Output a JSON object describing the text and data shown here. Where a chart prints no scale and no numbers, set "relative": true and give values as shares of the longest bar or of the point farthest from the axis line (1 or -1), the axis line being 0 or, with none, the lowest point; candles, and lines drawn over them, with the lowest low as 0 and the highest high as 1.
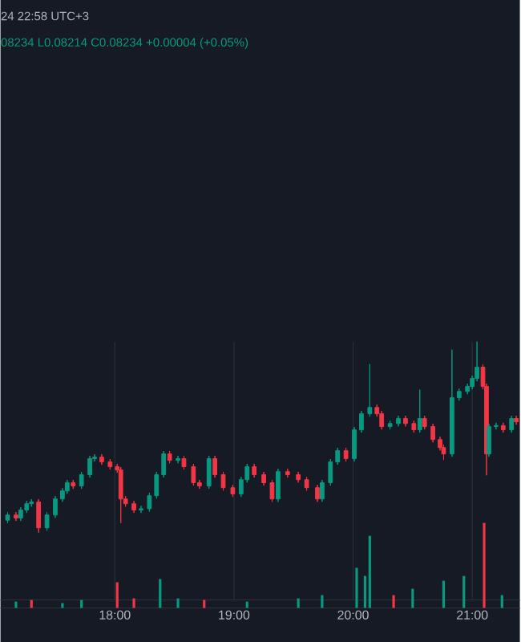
{
  "chart_data": [
    {
      "type": "candlestick",
      "relative": true,
      "xlim": [
        17.04,
        21.4
      ],
      "grid": "x",
      "xticks": [
        {
          "value": 18,
          "label": "18:00"
        },
        {
          "value": 19,
          "label": "19:00"
        },
        {
          "value": 20,
          "label": "20:00"
        },
        {
          "value": 21,
          "label": "21:00"
        }
      ],
      "annotations": [
        "24 22:58 UTC+3",
        "08234  L0.08214  C0.08234  +0.00004 (+0.05%)"
      ],
      "x": [
        17.1,
        17.17,
        17.21,
        17.26,
        17.3,
        17.36,
        17.43,
        17.5,
        17.56,
        17.6,
        17.65,
        17.72,
        17.79,
        17.83,
        17.89,
        17.96,
        18.02,
        18.05,
        18.09,
        18.16,
        18.22,
        18.29,
        18.35,
        18.41,
        18.46,
        18.53,
        18.58,
        18.66,
        18.71,
        18.79,
        18.84,
        18.91,
        18.99,
        19.06,
        19.11,
        19.17,
        19.25,
        19.32,
        19.37,
        19.45,
        19.54,
        19.61,
        19.7,
        19.74,
        19.81,
        19.87,
        19.94,
        20.01,
        20.07,
        20.14,
        20.2,
        20.24,
        20.31,
        20.38,
        20.44,
        20.51,
        20.56,
        20.6,
        20.67,
        20.73,
        20.76,
        20.83,
        20.89,
        20.96,
        21.0,
        21.04,
        21.09,
        21.12,
        21.14,
        21.2,
        21.26,
        21.33,
        21.37
      ],
      "ohlc": [
        [
          0.065,
          0.107,
          0.05,
          0.092
        ],
        [
          0.092,
          0.107,
          0.061,
          0.076
        ],
        [
          0.076,
          0.133,
          0.061,
          0.118
        ],
        [
          0.118,
          0.166,
          0.103,
          0.151
        ],
        [
          0.151,
          0.175,
          0.136,
          0.16
        ],
        [
          0.16,
          0.175,
          0,
          0.025
        ],
        [
          0.025,
          0.107,
          0.01,
          0.092
        ],
        [
          0.092,
          0.191,
          0.077,
          0.176
        ],
        [
          0.176,
          0.233,
          0.161,
          0.218
        ],
        [
          0.218,
          0.276,
          0.203,
          0.261
        ],
        [
          0.261,
          0.276,
          0.229,
          0.244
        ],
        [
          0.244,
          0.318,
          0.229,
          0.303
        ],
        [
          0.303,
          0.402,
          0.288,
          0.387
        ],
        [
          0.387,
          0.41,
          0.372,
          0.395
        ],
        [
          0.395,
          0.41,
          0.355,
          0.37
        ],
        [
          0.37,
          0.385,
          0.33,
          0.345
        ],
        [
          0.345,
          0.36,
          0.313,
          0.328
        ],
        [
          0.328,
          0.343,
          0.05,
          0.176
        ],
        [
          0.176,
          0.191,
          0.136,
          0.151
        ],
        [
          0.151,
          0.166,
          0.103,
          0.118
        ],
        [
          0.118,
          0.14,
          0.103,
          0.125
        ],
        [
          0.125,
          0.208,
          0.11,
          0.193
        ],
        [
          0.193,
          0.318,
          0.178,
          0.303
        ],
        [
          0.303,
          0.427,
          0.288,
          0.412
        ],
        [
          0.412,
          0.427,
          0.363,
          0.378
        ],
        [
          0.378,
          0.402,
          0.363,
          0.387
        ],
        [
          0.387,
          0.402,
          0.33,
          0.345
        ],
        [
          0.345,
          0.36,
          0.246,
          0.261
        ],
        [
          0.261,
          0.276,
          0.229,
          0.244
        ],
        [
          0.244,
          0.402,
          0.229,
          0.387
        ],
        [
          0.387,
          0.402,
          0.288,
          0.303
        ],
        [
          0.303,
          0.318,
          0.22,
          0.235
        ],
        [
          0.235,
          0.25,
          0.187,
          0.202
        ],
        [
          0.202,
          0.292,
          0.187,
          0.277
        ],
        [
          0.277,
          0.36,
          0.262,
          0.345
        ],
        [
          0.345,
          0.36,
          0.288,
          0.303
        ],
        [
          0.303,
          0.318,
          0.246,
          0.261
        ],
        [
          0.261,
          0.276,
          0.161,
          0.176
        ],
        [
          0.176,
          0.334,
          0.161,
          0.319
        ],
        [
          0.319,
          0.334,
          0.288,
          0.303
        ],
        [
          0.303,
          0.318,
          0.262,
          0.277
        ],
        [
          0.277,
          0.292,
          0.22,
          0.235
        ],
        [
          0.235,
          0.25,
          0.161,
          0.176
        ],
        [
          0.176,
          0.276,
          0.161,
          0.261
        ],
        [
          0.261,
          0.385,
          0.246,
          0.37
        ],
        [
          0.37,
          0.444,
          0.355,
          0.429
        ],
        [
          0.429,
          0.444,
          0.372,
          0.387
        ],
        [
          0.387,
          0.553,
          0.372,
          0.538
        ],
        [
          0.538,
          0.637,
          0.523,
          0.622
        ],
        [
          0.622,
          0.882,
          0.607,
          0.655
        ],
        [
          0.655,
          0.67,
          0.607,
          0.622
        ],
        [
          0.622,
          0.637,
          0.54,
          0.555
        ],
        [
          0.555,
          0.586,
          0.54,
          0.571
        ],
        [
          0.571,
          0.612,
          0.556,
          0.597
        ],
        [
          0.597,
          0.612,
          0.556,
          0.571
        ],
        [
          0.571,
          0.586,
          0.523,
          0.538
        ],
        [
          0.538,
          0.748,
          0.523,
          0.597
        ],
        [
          0.597,
          0.612,
          0.54,
          0.555
        ],
        [
          0.555,
          0.57,
          0.472,
          0.487
        ],
        [
          0.487,
          0.502,
          0.43,
          0.445
        ],
        [
          0.445,
          0.46,
          0.38,
          0.412
        ],
        [
          0.412,
          0.958,
          0.397,
          0.706
        ],
        [
          0.706,
          0.754,
          0.691,
          0.739
        ],
        [
          0.739,
          0.78,
          0.724,
          0.765
        ],
        [
          0.765,
          0.822,
          0.75,
          0.807
        ],
        [
          0.807,
          1,
          0.792,
          0.866
        ],
        [
          0.866,
          0.881,
          0.75,
          0.765
        ],
        [
          0.765,
          0.78,
          0.3,
          0.412
        ],
        [
          0.412,
          0.57,
          0.397,
          0.555
        ],
        [
          0.555,
          0.575,
          0.54,
          0.56
        ],
        [
          0.56,
          0.575,
          0.523,
          0.538
        ],
        [
          0.538,
          0.612,
          0.523,
          0.597
        ],
        [
          0.597,
          0.612,
          0.565,
          0.58
        ]
      ]
    },
    {
      "type": "bar",
      "relative": true,
      "xlim": [
        17.04,
        21.4
      ],
      "x": [
        17.17,
        17.3,
        17.56,
        17.72,
        18.02,
        18.16,
        18.38,
        18.53,
        18.75,
        19.11,
        19.54,
        19.74,
        20.03,
        20.1,
        20.14,
        20.34,
        20.5,
        20.76,
        20.93,
        21.1,
        21.25
      ],
      "values": [
        0.075,
        0.094,
        0.057,
        0.094,
        0.302,
        0.113,
        0.34,
        0.113,
        0.094,
        0.075,
        0.113,
        0.151,
        0.472,
        0.377,
        0.849,
        0.151,
        0.226,
        0.321,
        0.377,
        1,
        0.151
      ],
      "colors": [
        "#089981",
        "#f23645",
        "#089981",
        "#089981",
        "#f23645",
        "#f23645",
        "#089981",
        "#089981",
        "#f23645",
        "#089981",
        "#089981",
        "#089981",
        "#089981",
        "#089981",
        "#089981",
        "#f23645",
        "#089981",
        "#089981",
        "#089981",
        "#f23645",
        "#089981"
      ]
    }
  ]
}
